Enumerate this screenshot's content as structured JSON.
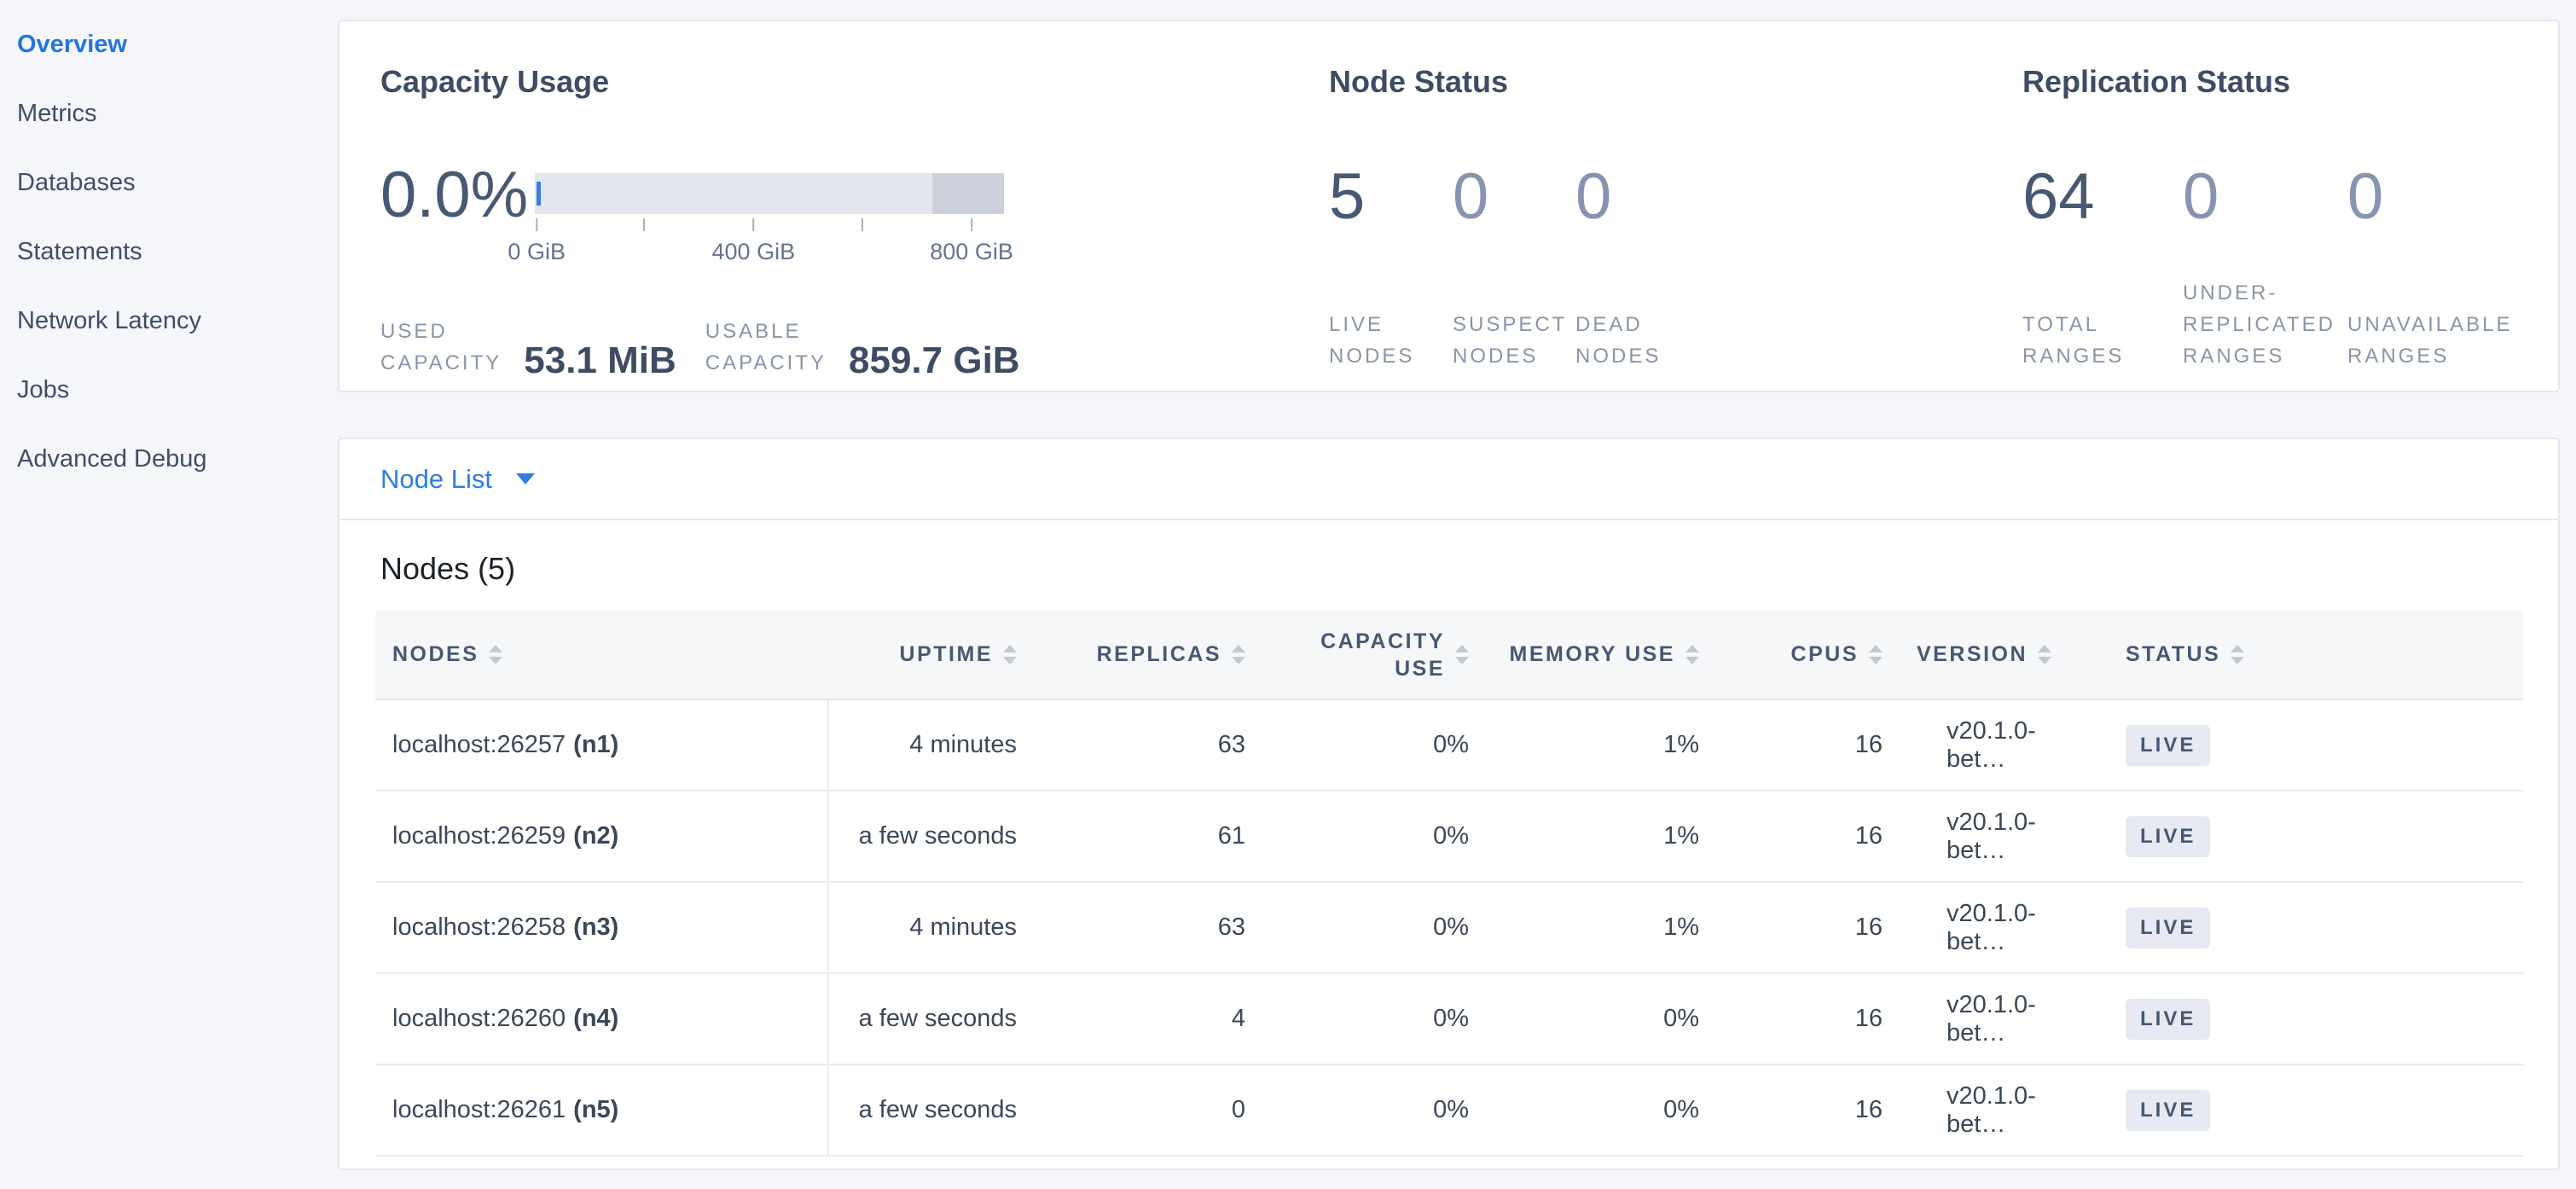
{
  "colors": {
    "accent_blue": "#2e7de0",
    "bar_light": "#e3e6ec",
    "bar_dark": "#cbd0da",
    "used_marker_blue": "#3e7ce0",
    "badge_bg": "#e7eaf2",
    "text_dark": "#475872",
    "text_muted": "#8a94a9",
    "page_bg": "#f4f6fa"
  },
  "sidebar": {
    "items": [
      {
        "label": "Overview",
        "state": "active"
      },
      {
        "label": "Metrics",
        "state": ""
      },
      {
        "label": "Databases",
        "state": ""
      },
      {
        "label": "Statements",
        "state": ""
      },
      {
        "label": "Network Latency",
        "state": ""
      },
      {
        "label": "Jobs",
        "state": ""
      },
      {
        "label": "Advanced Debug",
        "state": ""
      }
    ]
  },
  "summary": {
    "capacity": {
      "title": "Capacity Usage",
      "percent": "0.0%",
      "used_label": "USED\nCAPACITY",
      "used_value": "53.1 MiB",
      "usable_label": "USABLE\nCAPACITY",
      "usable_value": "859.7 GiB",
      "axis_ticks": [
        {
          "pos": "0.4%",
          "label": "0 GiB"
        },
        {
          "pos": "23.3%",
          "label": ""
        },
        {
          "pos": "46.6%",
          "label": "400 GiB"
        },
        {
          "pos": "69.9%",
          "label": ""
        },
        {
          "pos": "93.1%",
          "label": "800 GiB"
        }
      ],
      "chart": {
        "type": "bar",
        "percent_used": 0.0,
        "used": "53.1 MiB",
        "usable": "859.7 GiB",
        "axis_max_gib": 800,
        "axis_tick_step_gib": 200
      }
    },
    "node_status": {
      "title": "Node Status",
      "stats": [
        {
          "value": "5",
          "label": "LIVE\nNODES",
          "emphasis": "strong"
        },
        {
          "value": "0",
          "label": "SUSPECT\nNODES",
          "emphasis": "muted"
        },
        {
          "value": "0",
          "label": "DEAD\nNODES",
          "emphasis": "muted"
        }
      ]
    },
    "replication_status": {
      "title": "Replication Status",
      "stats": [
        {
          "value": "64",
          "label": "TOTAL\nRANGES",
          "emphasis": "strong"
        },
        {
          "value": "0",
          "label": "UNDER-\nREPLICATED\nRANGES",
          "emphasis": "muted"
        },
        {
          "value": "0",
          "label": "UNAVAILABLE\nRANGES",
          "emphasis": "muted"
        }
      ]
    }
  },
  "node_list_bar": {
    "label": "Node List"
  },
  "nodes_section": {
    "heading": "Nodes (5)",
    "table": {
      "columns": [
        {
          "label": "NODES",
          "align": "left",
          "wrap": ""
        },
        {
          "label": "UPTIME",
          "align": "right",
          "wrap": ""
        },
        {
          "label": "REPLICAS",
          "align": "right",
          "wrap": ""
        },
        {
          "label": "CAPACITY USE",
          "align": "right",
          "wrap": "wrap"
        },
        {
          "label": "MEMORY USE",
          "align": "right",
          "wrap": ""
        },
        {
          "label": "CPUS",
          "align": "right",
          "wrap": ""
        },
        {
          "label": "VERSION",
          "align": "left",
          "wrap": ""
        },
        {
          "label": "STATUS",
          "align": "left",
          "wrap": ""
        }
      ],
      "rows": [
        {
          "host": "localhost:26257",
          "name": "(n1)",
          "uptime": "4 minutes",
          "replicas": "63",
          "capacity_use": "0%",
          "memory_use": "1%",
          "cpus": "16",
          "version": "v20.1.0-bet…",
          "status": "LIVE"
        },
        {
          "host": "localhost:26259",
          "name": "(n2)",
          "uptime": "a few seconds",
          "replicas": "61",
          "capacity_use": "0%",
          "memory_use": "1%",
          "cpus": "16",
          "version": "v20.1.0-bet…",
          "status": "LIVE"
        },
        {
          "host": "localhost:26258",
          "name": "(n3)",
          "uptime": "4 minutes",
          "replicas": "63",
          "capacity_use": "0%",
          "memory_use": "1%",
          "cpus": "16",
          "version": "v20.1.0-bet…",
          "status": "LIVE"
        },
        {
          "host": "localhost:26260",
          "name": "(n4)",
          "uptime": "a few seconds",
          "replicas": "4",
          "capacity_use": "0%",
          "memory_use": "0%",
          "cpus": "16",
          "version": "v20.1.0-bet…",
          "status": "LIVE"
        },
        {
          "host": "localhost:26261",
          "name": "(n5)",
          "uptime": "a few seconds",
          "replicas": "0",
          "capacity_use": "0%",
          "memory_use": "0%",
          "cpus": "16",
          "version": "v20.1.0-bet…",
          "status": "LIVE"
        }
      ]
    }
  }
}
